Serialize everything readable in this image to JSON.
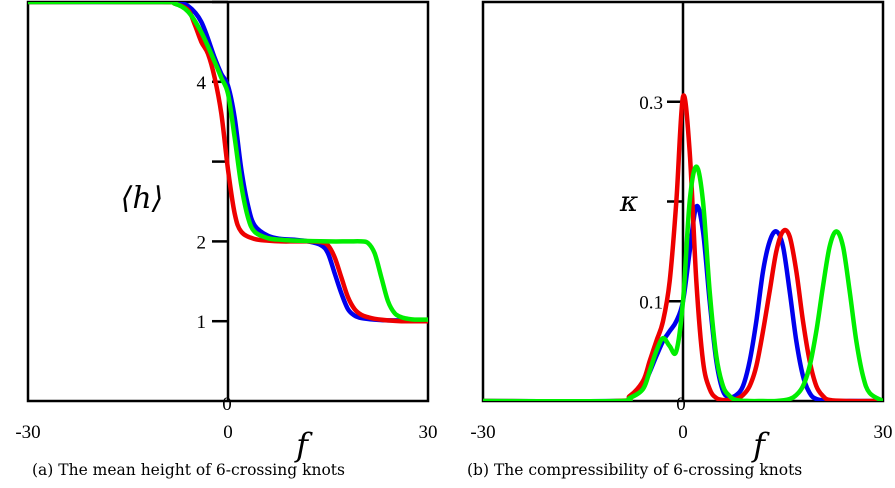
{
  "chart_data": [
    {
      "type": "line",
      "caption": "(a) The mean height of 6-crossing knots",
      "xlabel": "f",
      "ylabel": "⟨h⟩",
      "xlim": [
        -30,
        30
      ],
      "ylim": [
        0,
        5
      ],
      "x_ticks": [
        "-30",
        "0",
        "30"
      ],
      "y_ticks": [
        {
          "value": 1,
          "label": "1"
        },
        {
          "value": 2,
          "label": "2"
        },
        {
          "value": 3,
          "label": ""
        },
        {
          "value": 4,
          "label": "4"
        },
        {
          "value": 5,
          "label": ""
        }
      ],
      "origin_label": "0",
      "grid": false,
      "series": [
        {
          "color": "#0000ee",
          "x": [
            -30,
            -10,
            -8,
            -6,
            -4,
            -2,
            -1,
            0,
            1,
            2,
            3,
            4,
            6,
            8,
            10,
            12,
            14,
            15,
            16,
            17,
            18,
            19,
            20,
            22,
            24,
            26,
            28,
            30
          ],
          "y": [
            5,
            5,
            4.99,
            4.95,
            4.75,
            4.3,
            4.1,
            3.95,
            3.55,
            2.9,
            2.45,
            2.2,
            2.07,
            2.03,
            2.02,
            2.0,
            1.95,
            1.85,
            1.6,
            1.35,
            1.15,
            1.07,
            1.04,
            1.02,
            1.01,
            1.01,
            1.0,
            1.0
          ]
        },
        {
          "color": "#ee0000",
          "x": [
            -30,
            -10,
            -8,
            -6,
            -5,
            -4,
            -3,
            -2,
            -1,
            0,
            1,
            2,
            4,
            6,
            8,
            10,
            12,
            14,
            15,
            16,
            17,
            18,
            19,
            20,
            21,
            22,
            24,
            26,
            28,
            30
          ],
          "y": [
            5,
            5,
            4.98,
            4.9,
            4.72,
            4.5,
            4.35,
            4.05,
            3.6,
            2.9,
            2.35,
            2.12,
            2.03,
            2.01,
            2.0,
            2.0,
            2.0,
            1.99,
            1.95,
            1.8,
            1.55,
            1.3,
            1.15,
            1.08,
            1.05,
            1.03,
            1.01,
            1.0,
            1.0,
            1.0
          ]
        },
        {
          "color": "#00ee00",
          "x": [
            -30,
            -10,
            -8,
            -6,
            -4,
            -2,
            -1,
            0,
            1,
            2,
            3,
            4,
            6,
            8,
            10,
            15,
            18,
            20,
            21,
            22,
            23,
            24,
            25,
            26,
            27,
            28,
            30
          ],
          "y": [
            5,
            5,
            4.98,
            4.88,
            4.62,
            4.25,
            4.05,
            3.85,
            3.3,
            2.7,
            2.3,
            2.12,
            2.04,
            2.02,
            2.01,
            2.0,
            2.0,
            2.0,
            1.98,
            1.85,
            1.55,
            1.25,
            1.1,
            1.05,
            1.03,
            1.02,
            1.02
          ]
        }
      ]
    },
    {
      "type": "line",
      "caption": "(b) The compressibility of 6-crossing knots",
      "xlabel": "f",
      "ylabel": "κ",
      "xlim": [
        -30,
        30
      ],
      "ylim": [
        0,
        0.4
      ],
      "x_ticks": [
        "-30",
        "0",
        "30"
      ],
      "y_ticks": [
        {
          "value": 0.1,
          "label": "0.1"
        },
        {
          "value": 0.2,
          "label": ""
        },
        {
          "value": 0.3,
          "label": "0.3"
        }
      ],
      "origin_label": "0",
      "grid": false,
      "series": [
        {
          "color": "#0000ee",
          "x": [
            -30,
            -10,
            -8,
            -6,
            -4,
            -3,
            -2,
            -1,
            0,
            1,
            2,
            3,
            4,
            5,
            6,
            7,
            8,
            9,
            10,
            11,
            12,
            13,
            14,
            15,
            16,
            17,
            18,
            19,
            20,
            22,
            25,
            30
          ],
          "y": [
            0,
            0,
            0.003,
            0.015,
            0.045,
            0.06,
            0.07,
            0.08,
            0.1,
            0.15,
            0.195,
            0.17,
            0.1,
            0.04,
            0.01,
            0.004,
            0.006,
            0.015,
            0.04,
            0.08,
            0.13,
            0.16,
            0.17,
            0.155,
            0.11,
            0.06,
            0.025,
            0.008,
            0.002,
            0,
            0,
            0
          ]
        },
        {
          "color": "#ee0000",
          "x": [
            -30,
            -10,
            -8,
            -6,
            -5,
            -4,
            -3,
            -2,
            -1,
            0,
            1,
            2,
            3,
            4,
            5,
            6,
            7,
            8,
            9,
            10,
            11,
            12,
            13,
            14,
            15,
            16,
            17,
            18,
            19,
            20,
            21,
            22,
            25,
            30
          ],
          "y": [
            0,
            0,
            0.005,
            0.02,
            0.04,
            0.06,
            0.08,
            0.12,
            0.2,
            0.305,
            0.25,
            0.12,
            0.04,
            0.012,
            0.003,
            0.001,
            0.001,
            0.002,
            0.006,
            0.015,
            0.035,
            0.07,
            0.11,
            0.15,
            0.17,
            0.165,
            0.13,
            0.08,
            0.04,
            0.015,
            0.005,
            0.001,
            0,
            0
          ]
        },
        {
          "color": "#00ee00",
          "x": [
            -30,
            -10,
            -8,
            -6,
            -5,
            -4,
            -3,
            -2,
            -1,
            0,
            1,
            2,
            3,
            4,
            5,
            6,
            7,
            8,
            10,
            12,
            14,
            16,
            17,
            18,
            19,
            20,
            21,
            22,
            23,
            24,
            25,
            26,
            27,
            28,
            30
          ],
          "y": [
            0,
            0,
            0.003,
            0.012,
            0.03,
            0.05,
            0.063,
            0.055,
            0.05,
            0.1,
            0.2,
            0.235,
            0.2,
            0.11,
            0.045,
            0.015,
            0.005,
            0.001,
            0,
            0,
            0,
            0.002,
            0.006,
            0.015,
            0.035,
            0.07,
            0.115,
            0.155,
            0.17,
            0.155,
            0.11,
            0.06,
            0.025,
            0.008,
            0
          ]
        }
      ]
    }
  ]
}
